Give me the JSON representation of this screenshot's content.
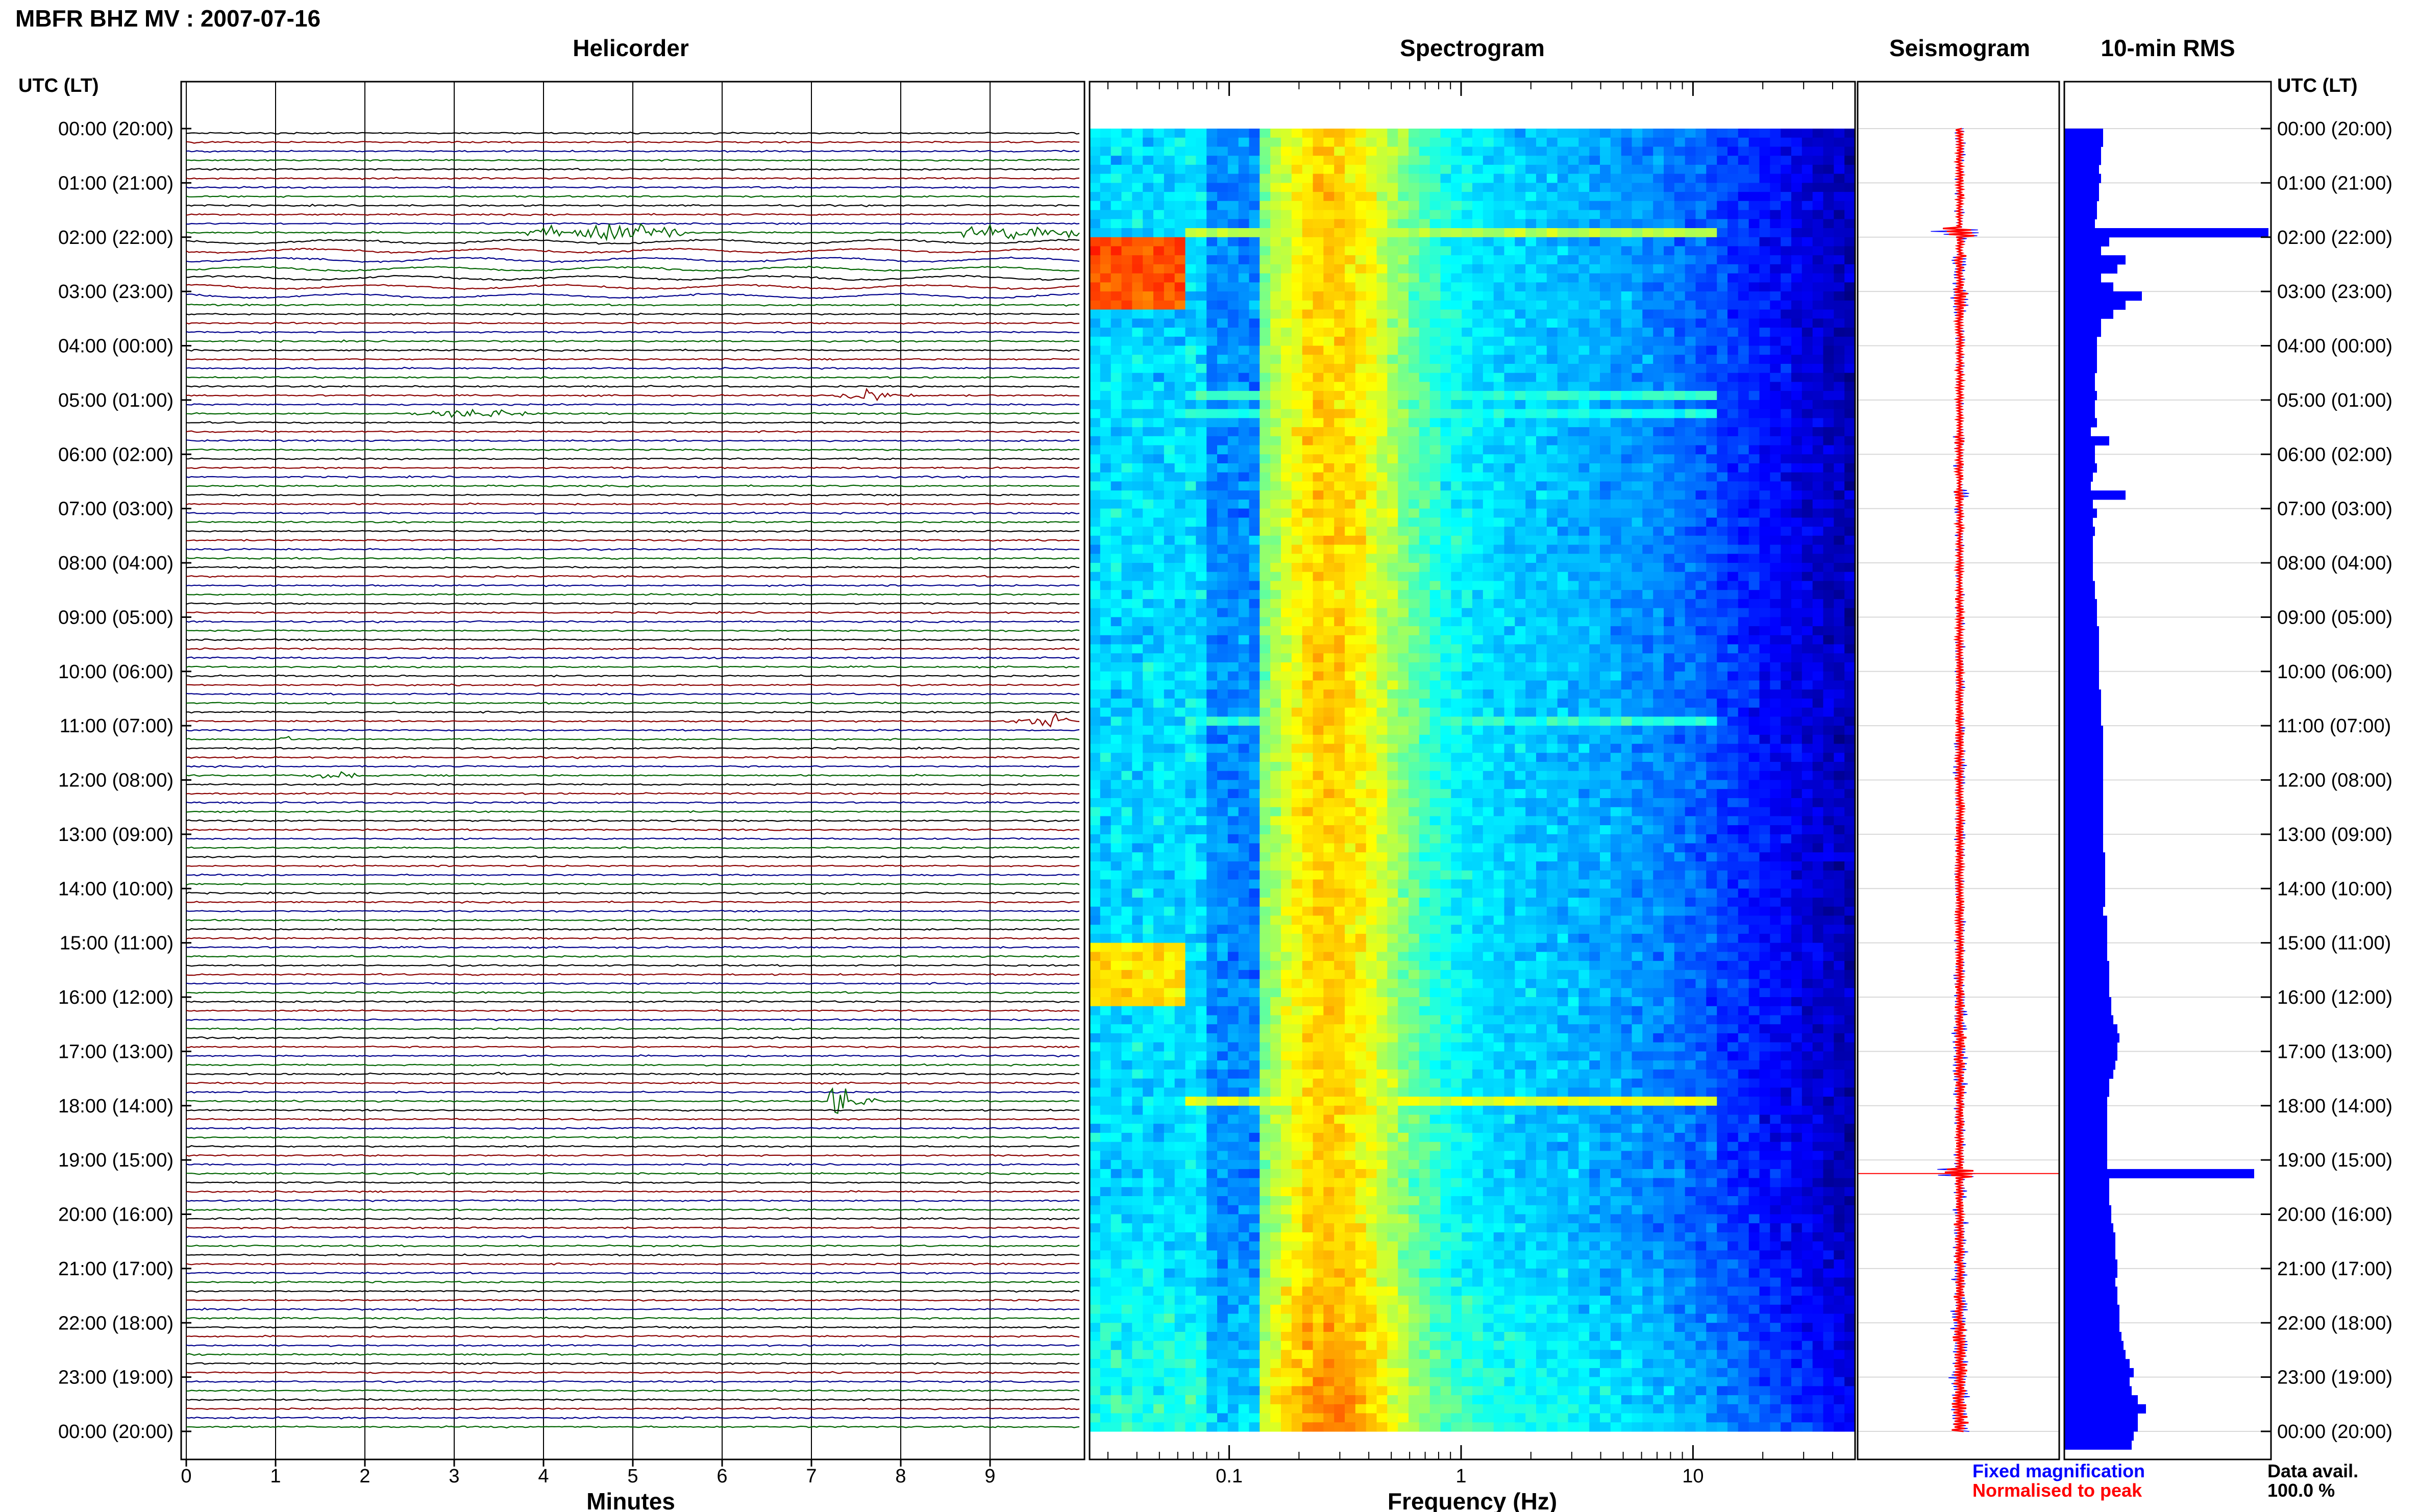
{
  "header": {
    "station_title": "MBFR BHZ MV : 2007-07-16"
  },
  "time_axis": {
    "heading": "UTC (LT)",
    "labels": [
      "00:00 (20:00)",
      "01:00 (21:00)",
      "02:00 (22:00)",
      "03:00 (23:00)",
      "04:00 (00:00)",
      "05:00 (01:00)",
      "06:00 (02:00)",
      "07:00 (03:00)",
      "08:00 (04:00)",
      "09:00 (05:00)",
      "10:00 (06:00)",
      "11:00 (07:00)",
      "12:00 (08:00)",
      "13:00 (09:00)",
      "14:00 (10:00)",
      "15:00 (11:00)",
      "16:00 (12:00)",
      "17:00 (13:00)",
      "18:00 (14:00)",
      "19:00 (15:00)",
      "20:00 (16:00)",
      "21:00 (17:00)",
      "22:00 (18:00)",
      "23:00 (19:00)",
      "00:00 (20:00)"
    ]
  },
  "colors": {
    "trace_cycle": [
      "#000000",
      "#8b0000",
      "#00008b",
      "#006400"
    ],
    "seismogram_fixed": "#0000ff",
    "seismogram_normalised": "#ff0000",
    "rms_bar": "#0000ff"
  },
  "chart_data": [
    {
      "type": "line",
      "panel": "helicorder",
      "title": "Helicorder",
      "xlabel": "Minutes",
      "xlim": [
        0,
        10
      ],
      "x_ticks": [
        "0",
        "1",
        "2",
        "3",
        "4",
        "5",
        "6",
        "7",
        "8",
        "9"
      ],
      "traces_per_hour": 6,
      "hours": 24,
      "events": [
        {
          "hour": 1,
          "line": 5,
          "start_min": 3.8,
          "end_min": 5.6,
          "amplitude": 0.9,
          "shape": "noise"
        },
        {
          "hour": 1,
          "line": 5,
          "start_min": 8.7,
          "end_min": 10.0,
          "amplitude": 0.9,
          "shape": "noise"
        },
        {
          "hour": 4,
          "line": 3,
          "start_min": 3.9,
          "end_min": 4.1,
          "amplitude": 0.5,
          "shape": "blip"
        },
        {
          "hour": 4,
          "line": 5,
          "start_min": 7.2,
          "end_min": 8.2,
          "amplitude": 0.7,
          "shape": "spindle"
        },
        {
          "hour": 5,
          "line": 1,
          "start_min": 2.5,
          "end_min": 4.0,
          "amplitude": 0.5,
          "shape": "spindle"
        },
        {
          "hour": 10,
          "line": 5,
          "start_min": 9.1,
          "end_min": 10.0,
          "amplitude": 0.8,
          "shape": "spindle"
        },
        {
          "hour": 11,
          "line": 1,
          "start_min": 1.0,
          "end_min": 1.3,
          "amplitude": 0.4,
          "shape": "blip"
        },
        {
          "hour": 11,
          "line": 5,
          "start_min": 1.3,
          "end_min": 2.0,
          "amplitude": 0.4,
          "shape": "spindle"
        },
        {
          "hour": 17,
          "line": 5,
          "start_min": 7.2,
          "end_min": 8.1,
          "amplitude": 4.5,
          "shape": "spike"
        },
        {
          "hour": 17,
          "line": 2,
          "start_min": 3.4,
          "end_min": 3.6,
          "amplitude": 0.3,
          "shape": "blip"
        }
      ]
    },
    {
      "type": "heatmap",
      "panel": "spectrogram",
      "title": "Spectrogram",
      "xlabel": "Frequency (Hz)",
      "x_scale": "log",
      "xlim": [
        0.025,
        50
      ],
      "x_ticks": [
        "0.1",
        "1",
        "10"
      ],
      "rows": 144,
      "peak_frequency_hz": 0.25,
      "colormap": "jet",
      "bright_rows": [
        {
          "hour": 1,
          "line": 5,
          "level": 0.55
        },
        {
          "hour": 4,
          "line": 5,
          "level": 0.42
        },
        {
          "hour": 5,
          "line": 1,
          "level": 0.4
        },
        {
          "hour": 10,
          "line": 5,
          "level": 0.42
        },
        {
          "hour": 17,
          "line": 5,
          "level": 0.6
        }
      ],
      "low_freq_blobs": [
        {
          "hour_start": 2.0,
          "hour_end": 3.2,
          "level": 0.8
        },
        {
          "hour_start": 14.9,
          "hour_end": 16.0,
          "level": 0.65
        }
      ]
    },
    {
      "type": "line",
      "panel": "seismogram",
      "title": "Seismogram",
      "series": [
        {
          "name": "Fixed magnification",
          "color": "#0000ff"
        },
        {
          "name": "Normalised to peak",
          "color": "#ff0000"
        }
      ]
    },
    {
      "type": "bar",
      "panel": "rms",
      "title": "10-min RMS",
      "orientation": "horizontal",
      "units": "relative",
      "values": [
        0.19,
        0.19,
        0.18,
        0.18,
        0.17,
        0.18,
        0.17,
        0.17,
        0.16,
        0.16,
        0.15,
        1.0,
        0.22,
        0.18,
        0.3,
        0.26,
        0.18,
        0.24,
        0.38,
        0.3,
        0.24,
        0.18,
        0.18,
        0.16,
        0.16,
        0.16,
        0.16,
        0.15,
        0.15,
        0.16,
        0.15,
        0.15,
        0.16,
        0.13,
        0.22,
        0.15,
        0.15,
        0.16,
        0.14,
        0.13,
        0.3,
        0.14,
        0.16,
        0.14,
        0.15,
        0.14,
        0.14,
        0.14,
        0.14,
        0.14,
        0.15,
        0.15,
        0.16,
        0.16,
        0.16,
        0.17,
        0.17,
        0.17,
        0.17,
        0.17,
        0.17,
        0.17,
        0.18,
        0.18,
        0.18,
        0.18,
        0.19,
        0.19,
        0.19,
        0.19,
        0.19,
        0.19,
        0.19,
        0.19,
        0.19,
        0.19,
        0.19,
        0.19,
        0.19,
        0.19,
        0.2,
        0.2,
        0.2,
        0.2,
        0.2,
        0.2,
        0.19,
        0.21,
        0.21,
        0.21,
        0.21,
        0.21,
        0.22,
        0.22,
        0.22,
        0.22,
        0.23,
        0.23,
        0.24,
        0.26,
        0.27,
        0.26,
        0.26,
        0.25,
        0.24,
        0.22,
        0.22,
        0.21,
        0.21,
        0.21,
        0.21,
        0.21,
        0.21,
        0.21,
        0.21,
        0.93,
        0.22,
        0.22,
        0.22,
        0.23,
        0.23,
        0.24,
        0.25,
        0.25,
        0.25,
        0.26,
        0.26,
        0.25,
        0.26,
        0.26,
        0.27,
        0.27,
        0.27,
        0.28,
        0.29,
        0.3,
        0.32,
        0.34,
        0.32,
        0.33,
        0.36,
        0.4,
        0.36,
        0.36,
        0.34,
        0.33
      ]
    }
  ],
  "footer": {
    "legend_fixed": "Fixed magnification",
    "legend_normalised": "Normalised to peak",
    "availability_label": "Data avail.",
    "availability_value": "100.0 %"
  }
}
